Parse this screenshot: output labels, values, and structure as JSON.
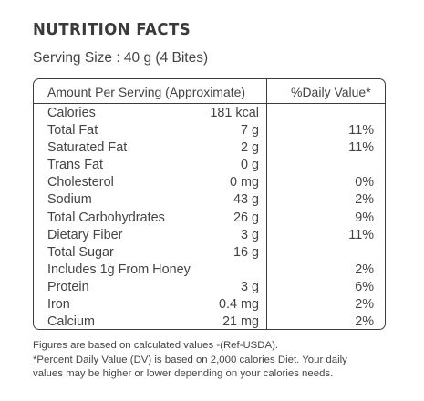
{
  "title": "NUTRITION FACTS",
  "serving": "Serving Size : 40 g (4 Bites)",
  "table": {
    "header_left": "Amount Per Serving (Approximate)",
    "header_right": "%Daily Value*",
    "rows": [
      {
        "name": "Calories",
        "amount": "181 kcal",
        "dv": ""
      },
      {
        "name": "Total Fat",
        "amount": "7 g",
        "dv": "11%"
      },
      {
        "name": "Saturated Fat",
        "amount": "2 g",
        "dv": "11%"
      },
      {
        "name": "Trans Fat",
        "amount": "0 g",
        "dv": ""
      },
      {
        "name": "Cholesterol",
        "amount": "0 mg",
        "dv": "0%"
      },
      {
        "name": "Sodium",
        "amount": "43 g",
        "dv": "2%"
      },
      {
        "name": "Total Carbohydrates",
        "amount": "26 g",
        "dv": "9%"
      },
      {
        "name": "Dietary Fiber",
        "amount": "3 g",
        "dv": "11%"
      },
      {
        "name": "Total Sugar",
        "amount": "16 g",
        "dv": ""
      },
      {
        "name": "Includes 1g From Honey",
        "amount": "",
        "dv": "2%"
      },
      {
        "name": "Protein",
        "amount": "3 g",
        "dv": "6%"
      },
      {
        "name": "Iron",
        "amount": "0.4 mg",
        "dv": "2%"
      },
      {
        "name": "Calcium",
        "amount": "21 mg",
        "dv": "2%"
      }
    ]
  },
  "footnote": {
    "line1": "Figures are based on calculated values -(Ref-USDA).",
    "line2": "*Percent Daily Value (DV) is based on 2,000 calories Diet. Your daily",
    "line3": "values may be higher or lower depending on your calories needs."
  }
}
